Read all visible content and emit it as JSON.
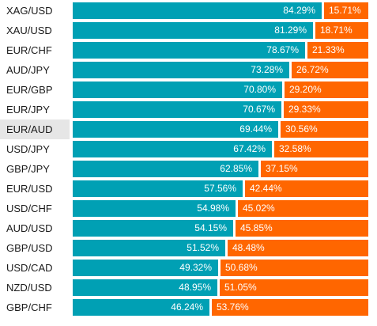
{
  "colors": {
    "long": "#00a0b4",
    "short": "#ff6600",
    "highlight_row": "#e6e6e6"
  },
  "chart_data": {
    "type": "bar",
    "orientation": "horizontal",
    "stacked": true,
    "xlim": [
      0,
      100
    ],
    "categories": [
      "XAG/USD",
      "XAU/USD",
      "EUR/CHF",
      "AUD/JPY",
      "EUR/GBP",
      "EUR/JPY",
      "EUR/AUD",
      "USD/JPY",
      "GBP/JPY",
      "EUR/USD",
      "USD/CHF",
      "AUD/USD",
      "GBP/USD",
      "USD/CAD",
      "NZD/USD",
      "GBP/CHF"
    ],
    "highlighted_category": "EUR/AUD",
    "series": [
      {
        "color": "#00a0b4",
        "values": [
          84.29,
          81.29,
          78.67,
          73.28,
          70.8,
          70.67,
          69.44,
          67.42,
          62.85,
          57.56,
          54.98,
          54.15,
          51.52,
          49.32,
          48.95,
          46.24
        ],
        "labels": [
          "84.29%",
          "81.29%",
          "78.67%",
          "73.28%",
          "70.80%",
          "70.67%",
          "69.44%",
          "67.42%",
          "62.85%",
          "57.56%",
          "54.98%",
          "54.15%",
          "51.52%",
          "49.32%",
          "48.95%",
          "46.24%"
        ]
      },
      {
        "color": "#ff6600",
        "values": [
          15.71,
          18.71,
          21.33,
          26.72,
          29.2,
          29.33,
          30.56,
          32.58,
          37.15,
          42.44,
          45.02,
          45.85,
          48.48,
          50.68,
          51.05,
          53.76
        ],
        "labels": [
          "15.71%",
          "18.71%",
          "21.33%",
          "26.72%",
          "29.20%",
          "29.33%",
          "30.56%",
          "32.58%",
          "37.15%",
          "42.44%",
          "45.02%",
          "45.85%",
          "48.48%",
          "50.68%",
          "51.05%",
          "53.76%"
        ]
      }
    ]
  }
}
